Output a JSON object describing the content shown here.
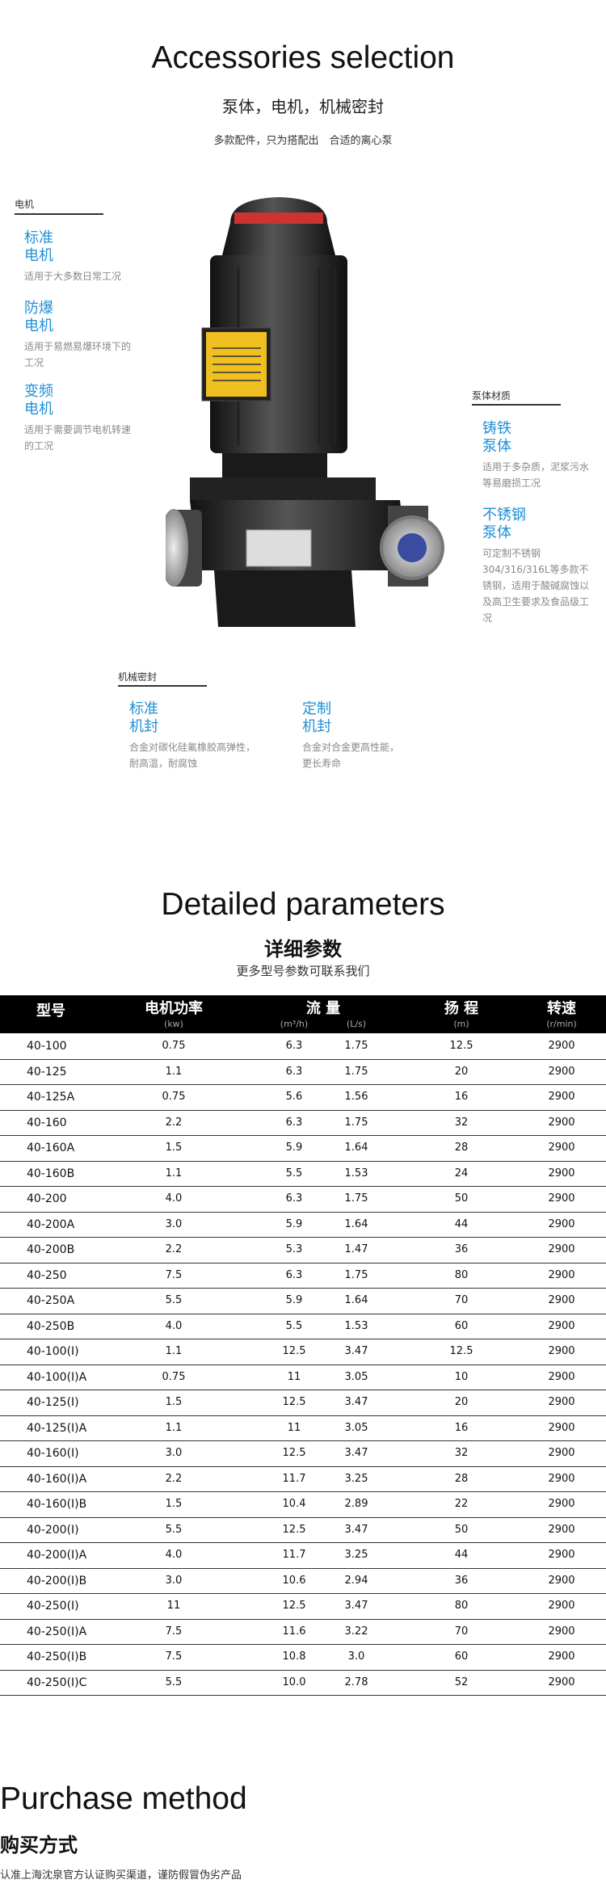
{
  "header": {
    "title": "Accessories selection",
    "subtitle": "泵体，电机，机械密封",
    "tagline": "多款配件，只为搭配出　合适的离心泵"
  },
  "motor": {
    "label": "电机",
    "items": [
      {
        "name": [
          "标准",
          "电机"
        ],
        "desc": "适用于大多数日常工况"
      },
      {
        "name": [
          "防爆",
          "电机"
        ],
        "desc": "适用于易燃易爆环境下的工况"
      },
      {
        "name": [
          "变频",
          "电机"
        ],
        "desc": "适用于需要调节电机转速的工况"
      }
    ]
  },
  "body": {
    "label": "泵体材质",
    "items": [
      {
        "name": [
          "铸铁",
          "泵体"
        ],
        "desc": "适用于多杂质，泥浆污水等易磨损工况"
      },
      {
        "name": [
          "不锈钢",
          "泵体"
        ],
        "desc": "可定制不锈钢304/316/316L等多款不锈钢，适用于酸碱腐蚀以及高卫生要求及食品级工况"
      }
    ]
  },
  "seal": {
    "label": "机械密封",
    "items": [
      {
        "name": [
          "标准",
          "机封"
        ],
        "desc": "合金对碳化硅氟橡胶高弹性，耐高温，耐腐蚀"
      },
      {
        "name": [
          "定制",
          "机封"
        ],
        "desc": "合金对合金更高性能，更长寿命"
      }
    ]
  },
  "params": {
    "title": "Detailed parameters",
    "subtitle": "详细参数",
    "note": "更多型号参数可联系我们"
  },
  "table": {
    "headers": [
      {
        "text": "型号"
      },
      {
        "text": "电机功率",
        "unit": "(kw)"
      },
      {
        "text": "流 量",
        "units": [
          "(m³/h)",
          "(L/s)"
        ]
      },
      {
        "text": "扬 程",
        "unit": "(m)"
      },
      {
        "text": "转速",
        "unit": "(r/min)"
      }
    ],
    "rows": [
      [
        "40-100",
        "0.75",
        "6.3",
        "1.75",
        "12.5",
        "2900"
      ],
      [
        "40-125",
        "1.1",
        "6.3",
        "1.75",
        "20",
        "2900"
      ],
      [
        "40-125A",
        "0.75",
        "5.6",
        "1.56",
        "16",
        "2900"
      ],
      [
        "40-160",
        "2.2",
        "6.3",
        "1.75",
        "32",
        "2900"
      ],
      [
        "40-160A",
        "1.5",
        "5.9",
        "1.64",
        "28",
        "2900"
      ],
      [
        "40-160B",
        "1.1",
        "5.5",
        "1.53",
        "24",
        "2900"
      ],
      [
        "40-200",
        "4.0",
        "6.3",
        "1.75",
        "50",
        "2900"
      ],
      [
        "40-200A",
        "3.0",
        "5.9",
        "1.64",
        "44",
        "2900"
      ],
      [
        "40-200B",
        "2.2",
        "5.3",
        "1.47",
        "36",
        "2900"
      ],
      [
        "40-250",
        "7.5",
        "6.3",
        "1.75",
        "80",
        "2900"
      ],
      [
        "40-250A",
        "5.5",
        "5.9",
        "1.64",
        "70",
        "2900"
      ],
      [
        "40-250B",
        "4.0",
        "5.5",
        "1.53",
        "60",
        "2900"
      ],
      [
        "40-100(I)",
        "1.1",
        "12.5",
        "3.47",
        "12.5",
        "2900"
      ],
      [
        "40-100(I)A",
        "0.75",
        "11",
        "3.05",
        "10",
        "2900"
      ],
      [
        "40-125(I)",
        "1.5",
        "12.5",
        "3.47",
        "20",
        "2900"
      ],
      [
        "40-125(I)A",
        "1.1",
        "11",
        "3.05",
        "16",
        "2900"
      ],
      [
        "40-160(I)",
        "3.0",
        "12.5",
        "3.47",
        "32",
        "2900"
      ],
      [
        "40-160(I)A",
        "2.2",
        "11.7",
        "3.25",
        "28",
        "2900"
      ],
      [
        "40-160(I)B",
        "1.5",
        "10.4",
        "2.89",
        "22",
        "2900"
      ],
      [
        "40-200(I)",
        "5.5",
        "12.5",
        "3.47",
        "50",
        "2900"
      ],
      [
        "40-200(I)A",
        "4.0",
        "11.7",
        "3.25",
        "44",
        "2900"
      ],
      [
        "40-200(I)B",
        "3.0",
        "10.6",
        "2.94",
        "36",
        "2900"
      ],
      [
        "40-250(I)",
        "11",
        "12.5",
        "3.47",
        "80",
        "2900"
      ],
      [
        "40-250(I)A",
        "7.5",
        "11.6",
        "3.22",
        "70",
        "2900"
      ],
      [
        "40-250(I)B",
        "7.5",
        "10.8",
        "3.0",
        "60",
        "2900"
      ],
      [
        "40-250(I)C",
        "5.5",
        "10.0",
        "2.78",
        "52",
        "2900"
      ]
    ]
  },
  "purchase": {
    "title": "Purchase method",
    "subtitle": "购买方式",
    "note": "认准上海沈泉官方认证购买渠道，谨防假冒伪劣产品"
  }
}
